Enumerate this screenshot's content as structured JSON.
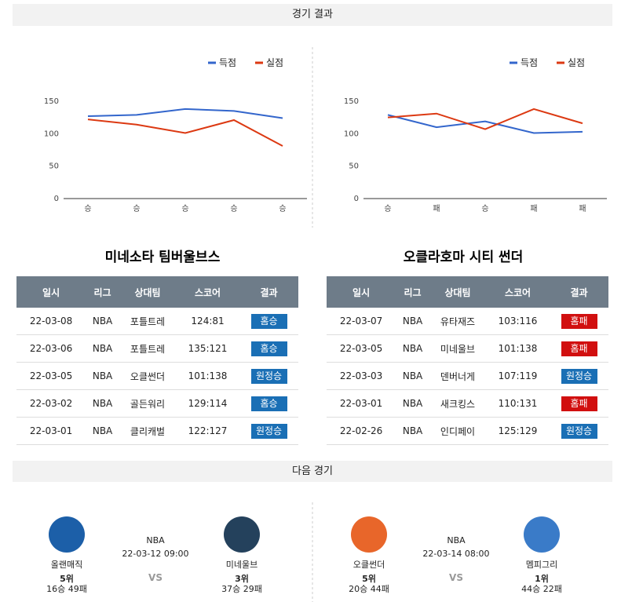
{
  "results_header": "경기 결과",
  "chart_data": [
    {
      "type": "line",
      "categories": [
        "승",
        "승",
        "승",
        "승",
        "승"
      ],
      "series": [
        {
          "name": "득점",
          "color": "#3366cc",
          "values": [
            127,
            129,
            138,
            135,
            124
          ]
        },
        {
          "name": "실점",
          "color": "#dc3912",
          "values": [
            122,
            114,
            101,
            121,
            81
          ]
        }
      ],
      "ylim": [
        0,
        150
      ],
      "yticks": [
        0,
        50,
        100,
        150
      ]
    },
    {
      "type": "line",
      "categories": [
        "승",
        "패",
        "승",
        "패",
        "패"
      ],
      "series": [
        {
          "name": "득점",
          "color": "#3366cc",
          "values": [
            129,
            110,
            119,
            101,
            103
          ]
        },
        {
          "name": "실점",
          "color": "#dc3912",
          "values": [
            125,
            131,
            107,
            138,
            116
          ]
        }
      ],
      "ylim": [
        0,
        150
      ],
      "yticks": [
        0,
        50,
        100,
        150
      ]
    }
  ],
  "teams": [
    {
      "name": "미네소타 팀버울브스",
      "columns": [
        "일시",
        "리그",
        "상대팀",
        "스코어",
        "결과"
      ],
      "rows": [
        [
          "22-03-08",
          "NBA",
          "포틀트레",
          "124:81",
          "홈승"
        ],
        [
          "22-03-06",
          "NBA",
          "포틀트레",
          "135:121",
          "홈승"
        ],
        [
          "22-03-05",
          "NBA",
          "오클썬더",
          "101:138",
          "원정승"
        ],
        [
          "22-03-02",
          "NBA",
          "골든워리",
          "129:114",
          "홈승"
        ],
        [
          "22-03-01",
          "NBA",
          "클리캐벌",
          "122:127",
          "원정승"
        ]
      ]
    },
    {
      "name": "오클라호마 시티 썬더",
      "columns": [
        "일시",
        "리그",
        "상대팀",
        "스코어",
        "결과"
      ],
      "rows": [
        [
          "22-03-07",
          "NBA",
          "유타재즈",
          "103:116",
          "홈패"
        ],
        [
          "22-03-05",
          "NBA",
          "미네울브",
          "101:138",
          "홈패"
        ],
        [
          "22-03-03",
          "NBA",
          "덴버너게",
          "107:119",
          "원정승"
        ],
        [
          "22-03-01",
          "NBA",
          "새크킹스",
          "110:131",
          "홈패"
        ],
        [
          "22-02-26",
          "NBA",
          "인디페이",
          "125:129",
          "원정승"
        ]
      ]
    }
  ],
  "next_header": "다음 경기",
  "next_games": [
    {
      "home": {
        "name": "올랜매직",
        "rank": "5위",
        "record": "16승 49패"
      },
      "league": "NBA",
      "datetime": "22-03-12 09:00",
      "vs": "VS",
      "away": {
        "name": "미네울브",
        "rank": "3위",
        "record": "37승 29패"
      }
    },
    {
      "home": {
        "name": "오클썬더",
        "rank": "5위",
        "record": "20승 44패"
      },
      "league": "NBA",
      "datetime": "22-03-14 08:00",
      "vs": "VS",
      "away": {
        "name": "멤피그리",
        "rank": "1위",
        "record": "44승 22패"
      }
    }
  ]
}
